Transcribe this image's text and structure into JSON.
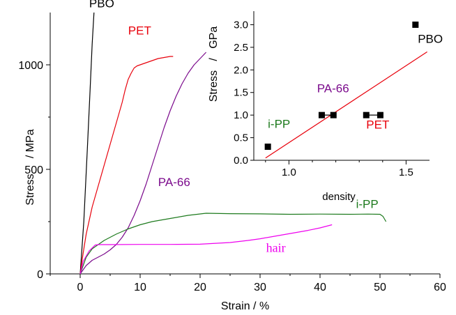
{
  "chart_data": [
    {
      "type": "line",
      "xlabel": "Strain / %",
      "ylabel_parts": [
        "Stress",
        "/ MPa"
      ],
      "xlim": [
        -5,
        60
      ],
      "ylim": [
        0,
        1250
      ],
      "xticks": [
        0,
        10,
        20,
        30,
        40,
        50,
        60
      ],
      "yticks": [
        0,
        500,
        1000
      ],
      "series": [
        {
          "name": "PBO",
          "color": "#000000",
          "label_at": [
            1.5,
            1275
          ],
          "x": [
            0,
            0.6,
            1.2,
            1.6,
            2.0,
            2.3
          ],
          "y": [
            0,
            250,
            600,
            850,
            1100,
            1250
          ]
        },
        {
          "name": "PET",
          "color": "#e8000b",
          "label_at": [
            8,
            1145
          ],
          "x": [
            0,
            0.5,
            1,
            2,
            3,
            4,
            5,
            6,
            7,
            7.5,
            8,
            8.5,
            9,
            9.5,
            10,
            11,
            12,
            13,
            14,
            15,
            15.5
          ],
          "y": [
            0,
            100,
            190,
            320,
            420,
            520,
            620,
            720,
            820,
            880,
            930,
            960,
            985,
            995,
            1000,
            1010,
            1020,
            1030,
            1035,
            1040,
            1040
          ]
        },
        {
          "name": "PA-66",
          "color": "#7b0a8c",
          "label_at": [
            13,
            420
          ],
          "x": [
            0,
            1,
            2,
            3,
            4,
            5,
            6,
            7,
            8,
            9,
            10,
            11,
            12,
            13,
            14,
            15,
            16,
            17,
            18,
            19,
            20,
            21
          ],
          "y": [
            0,
            40,
            65,
            80,
            95,
            115,
            140,
            175,
            220,
            280,
            350,
            430,
            520,
            610,
            700,
            780,
            850,
            910,
            960,
            1000,
            1030,
            1060
          ]
        },
        {
          "name": "i-PP",
          "color": "#1d7a1d",
          "label_at": [
            46,
            315
          ],
          "x": [
            0,
            1,
            2,
            3,
            4,
            6,
            8,
            10,
            12,
            15,
            18,
            21,
            25,
            30,
            35,
            40,
            45,
            48,
            50,
            50.5,
            51
          ],
          "y": [
            0,
            80,
            120,
            140,
            160,
            190,
            215,
            235,
            250,
            265,
            280,
            290,
            288,
            287,
            285,
            286,
            285,
            286,
            285,
            275,
            250
          ]
        },
        {
          "name": "hair",
          "color": "#ee00ee",
          "label_at": [
            31,
            105
          ],
          "x": [
            0,
            0.5,
            1.5,
            2.5,
            3,
            5,
            10,
            15,
            20,
            25,
            28,
            30,
            32,
            35,
            38,
            40,
            42
          ],
          "y": [
            0,
            60,
            110,
            138,
            140,
            140,
            141,
            141,
            142,
            150,
            160,
            168,
            178,
            193,
            208,
            220,
            235
          ]
        }
      ]
    },
    {
      "type": "scatter",
      "xlabel": "density",
      "ylabel_parts": [
        "Stress",
        "/",
        "GPa"
      ],
      "xlim": [
        0.85,
        1.6
      ],
      "ylim": [
        0,
        3.3
      ],
      "xticks": [
        1.0,
        1.5
      ],
      "xtick_labels": [
        "1.0",
        "1.5"
      ],
      "yticks": [
        0,
        0.5,
        1.0,
        1.5,
        2.0,
        2.5,
        3.0
      ],
      "ytick_labels": [
        "0.0",
        "0.5",
        "1.0",
        "1.5",
        "2.0",
        "2.5",
        "3.0"
      ],
      "points": [
        {
          "label": "i-PP",
          "color": "#1d7a1d",
          "x": [
            0.91
          ],
          "y": [
            0.3
          ],
          "label_at": [
            0.91,
            0.72
          ]
        },
        {
          "label": "PA-66",
          "color": "#7b0a8c",
          "x": [
            1.14,
            1.19
          ],
          "y": [
            1.0,
            1.0
          ],
          "label_at": [
            1.12,
            1.5
          ]
        },
        {
          "label": "PET",
          "color": "#e8000b",
          "x": [
            1.33,
            1.39
          ],
          "y": [
            1.0,
            1.0
          ],
          "label_at": [
            1.33,
            0.7
          ]
        },
        {
          "label": "PBO",
          "color": "#000000",
          "x": [
            1.54
          ],
          "y": [
            3.0
          ],
          "label_at": [
            1.55,
            2.6
          ]
        }
      ],
      "fit_line": {
        "color": "#e8000b",
        "x": [
          0.9,
          1.59
        ],
        "y": [
          0.05,
          2.4
        ]
      }
    }
  ]
}
